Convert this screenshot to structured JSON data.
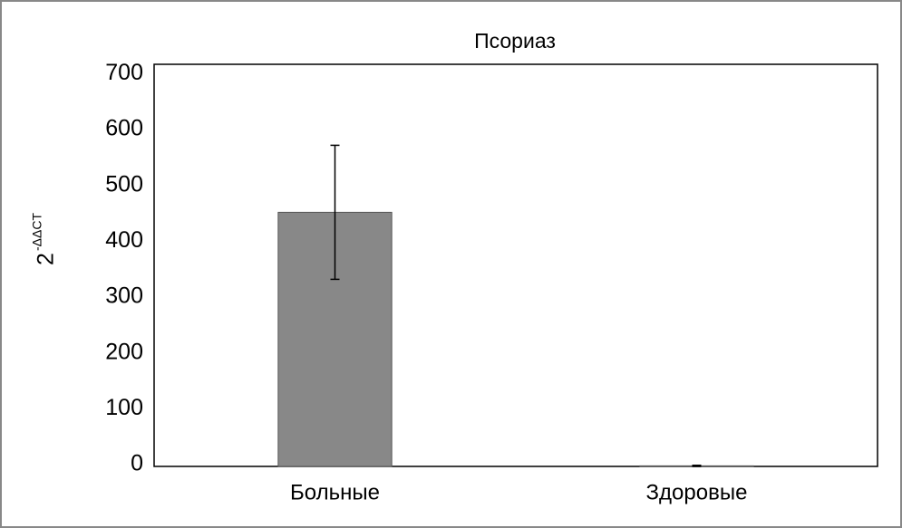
{
  "chart_data": {
    "type": "bar",
    "title": "Псориаз",
    "y_label": "2",
    "y_label_superscript": "-ΔΔCT",
    "categories": [
      "Больные",
      "Здоровые"
    ],
    "values": [
      455,
      1
    ],
    "errors": [
      120,
      1
    ],
    "color": "#888888",
    "ylim": [
      0,
      720
    ],
    "yticks": [
      0,
      100,
      200,
      300,
      400,
      500,
      600,
      700
    ],
    "grid": false
  }
}
